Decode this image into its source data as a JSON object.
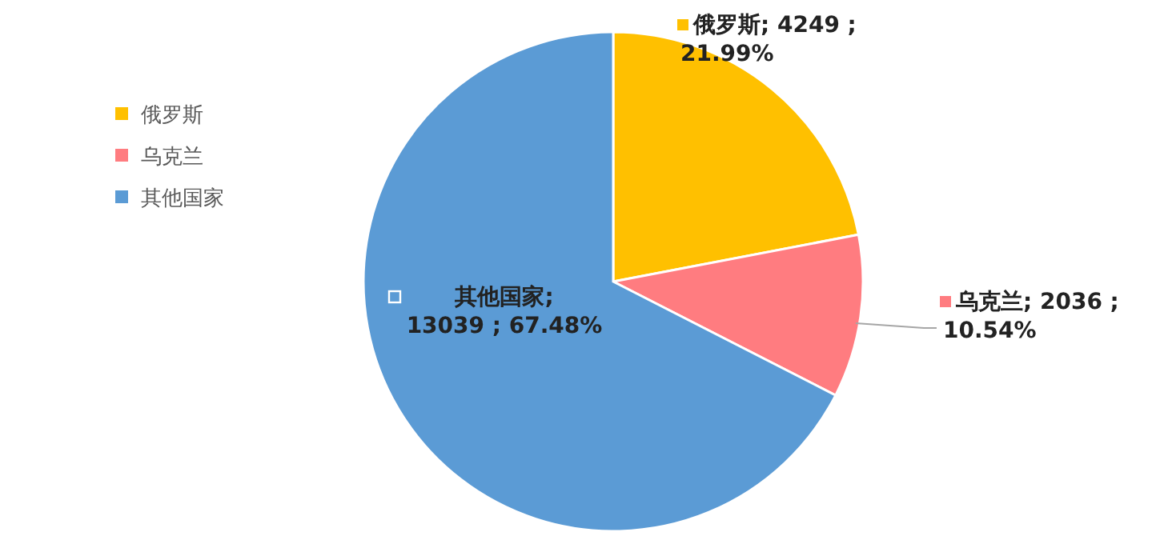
{
  "chart_data": {
    "type": "pie",
    "categories": [
      "俄罗斯",
      "乌克兰",
      "其他国家"
    ],
    "values": [
      4249,
      2036,
      13039
    ],
    "colors": [
      "#ffc000",
      "#ff7c80",
      "#5b9bd5"
    ],
    "value_labels": [
      "俄罗斯; 4249 ;\n21.99%",
      "乌克兰; 2036 ;\n10.54%",
      "其他国家;\n13039 ; 67.48%"
    ],
    "legend": "left"
  }
}
